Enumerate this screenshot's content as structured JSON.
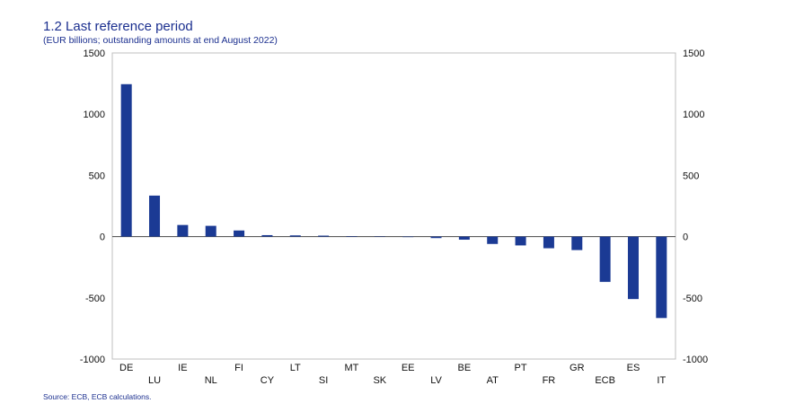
{
  "chart_data": {
    "type": "bar",
    "title": "1.2 Last reference period",
    "subtitle": "(EUR billions; outstanding amounts at end August 2022)",
    "source": "Source: ECB, ECB calculations.",
    "categories": [
      "DE",
      "LU",
      "IE",
      "NL",
      "FI",
      "CY",
      "LT",
      "SI",
      "MT",
      "SK",
      "EE",
      "LV",
      "BE",
      "AT",
      "PT",
      "FR",
      "GR",
      "ECB",
      "ES",
      "IT"
    ],
    "values": [
      1245,
      335,
      95,
      88,
      50,
      12,
      10,
      8,
      4,
      3,
      -4,
      -12,
      -25,
      -60,
      -72,
      -95,
      -110,
      -370,
      -510,
      -665
    ],
    "ylim": [
      -1000,
      1500
    ],
    "yticks": [
      1500,
      1000,
      500,
      0,
      -500,
      -1000
    ],
    "ytick_labels": [
      "1500",
      "1000",
      "500",
      "0",
      "-500",
      "-1000"
    ],
    "bar_color": "#1b3a94",
    "xlabel": "",
    "ylabel": ""
  }
}
